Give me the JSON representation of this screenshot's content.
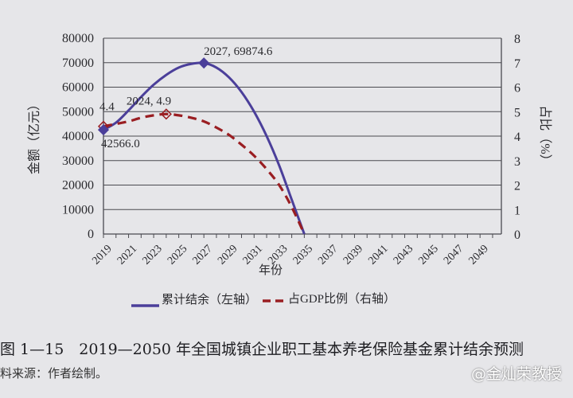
{
  "chart_data": {
    "type": "line",
    "xlabel": "年份",
    "ylabel_left": "金额（亿元）",
    "ylabel_right": "占比（%）",
    "ylim_left": [
      0,
      80000
    ],
    "ylim_right": [
      0,
      8
    ],
    "yticks_left": [
      0,
      10000,
      20000,
      30000,
      40000,
      50000,
      60000,
      70000,
      80000
    ],
    "yticks_right": [
      0,
      1,
      2,
      3,
      4,
      5,
      6,
      7,
      8
    ],
    "xlim": [
      2019,
      2050
    ],
    "xtick_labels": [
      "2019",
      "2021",
      "2023",
      "2025",
      "2027",
      "2029",
      "2031",
      "2033",
      "2035",
      "2037",
      "2039",
      "2041",
      "2043",
      "2045",
      "2047",
      "2049"
    ],
    "grid": true,
    "legend_position": "bottom",
    "series": [
      {
        "name": "累计结余（左轴）",
        "axis": "left",
        "style": "solid",
        "color": "#4b3f9a",
        "x": [
          2019,
          2020,
          2021,
          2022,
          2023,
          2024,
          2025,
          2026,
          2027,
          2028,
          2029,
          2030,
          2031,
          2032,
          2033,
          2034,
          2035
        ],
        "values": [
          42566.0,
          45500,
          50500,
          56000,
          61000,
          65000,
          68000,
          69500,
          69874.6,
          68000,
          64000,
          58000,
          50000,
          40000,
          28000,
          14000,
          0
        ]
      },
      {
        "name": "占GDP比例（右轴）",
        "axis": "right",
        "style": "dashed",
        "color": "#9a1e22",
        "x": [
          2019,
          2020,
          2021,
          2022,
          2023,
          2024,
          2025,
          2026,
          2027,
          2028,
          2029,
          2030,
          2031,
          2032,
          2033,
          2034,
          2035
        ],
        "values": [
          4.4,
          4.5,
          4.6,
          4.75,
          4.85,
          4.9,
          4.85,
          4.75,
          4.6,
          4.35,
          4.05,
          3.65,
          3.2,
          2.65,
          2.0,
          1.1,
          0
        ]
      }
    ],
    "annotations": [
      {
        "text": "2027, 69874.6",
        "series": 0,
        "x": 2027
      },
      {
        "text": "2024, 4.9",
        "series": 1,
        "x": 2024
      },
      {
        "text": "4.4",
        "series": 1,
        "x": 2019
      },
      {
        "text": "42566.0",
        "series": 0,
        "x": 2019
      }
    ]
  },
  "caption": "图 1—15　2019—2050 年全国城镇企业职工基本养老保险基金累计结余预测",
  "source": "料来源：作者绘制。",
  "watermark": "@金灿荣教授"
}
